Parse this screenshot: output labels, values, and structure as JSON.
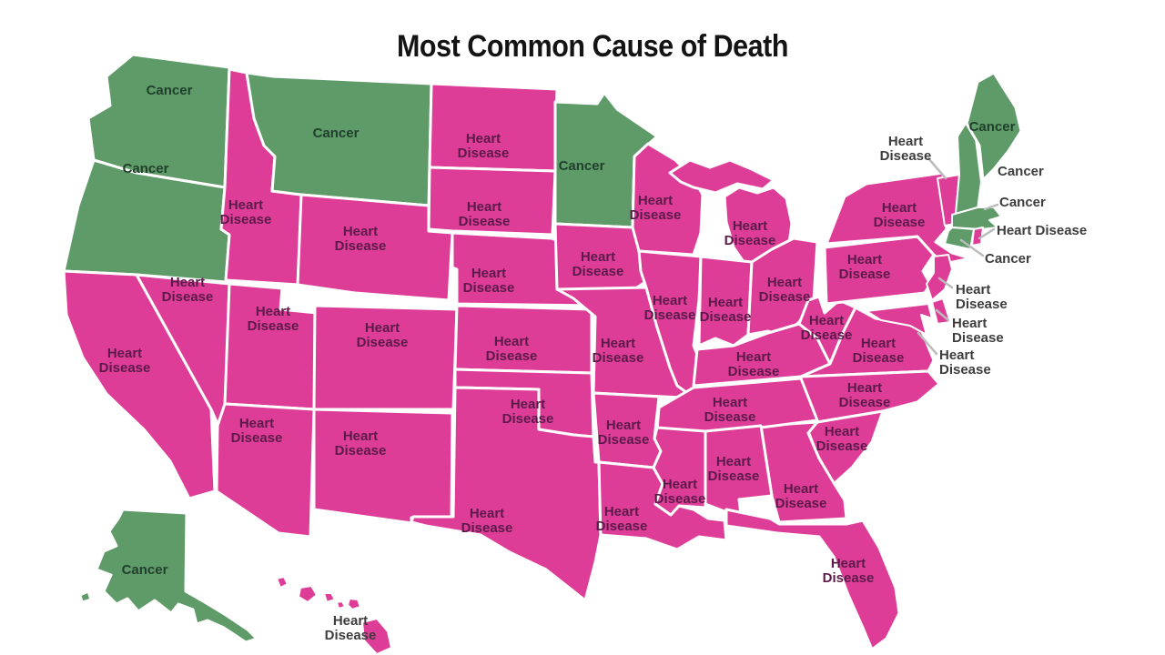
{
  "title": "Most Common Cause of Death",
  "map": {
    "causes": {
      "heart_disease": {
        "label": "Heart Disease",
        "fill": "#de3d97",
        "label_color": "#5c1a4a"
      },
      "cancer": {
        "label": "Cancer",
        "fill": "#5f9b69",
        "label_color": "#20402c"
      }
    },
    "colors": {
      "offmap_label": "#3d3d3d",
      "leader_line": "#bbbbbb",
      "state_border": "#ffffff",
      "background": "#ffffff",
      "title": "#141414"
    },
    "states": [
      {
        "id": "WA",
        "name": "Washington",
        "cause": "cancer"
      },
      {
        "id": "OR",
        "name": "Oregon",
        "cause": "cancer"
      },
      {
        "id": "CA",
        "name": "California",
        "cause": "heart_disease"
      },
      {
        "id": "NV",
        "name": "Nevada",
        "cause": "heart_disease"
      },
      {
        "id": "ID",
        "name": "Idaho",
        "cause": "heart_disease"
      },
      {
        "id": "MT",
        "name": "Montana",
        "cause": "cancer"
      },
      {
        "id": "WY",
        "name": "Wyoming",
        "cause": "heart_disease"
      },
      {
        "id": "UT",
        "name": "Utah",
        "cause": "heart_disease"
      },
      {
        "id": "CO",
        "name": "Colorado",
        "cause": "heart_disease"
      },
      {
        "id": "AZ",
        "name": "Arizona",
        "cause": "heart_disease"
      },
      {
        "id": "NM",
        "name": "New Mexico",
        "cause": "heart_disease"
      },
      {
        "id": "ND",
        "name": "North Dakota",
        "cause": "heart_disease"
      },
      {
        "id": "SD",
        "name": "South Dakota",
        "cause": "heart_disease"
      },
      {
        "id": "NE",
        "name": "Nebraska",
        "cause": "heart_disease"
      },
      {
        "id": "KS",
        "name": "Kansas",
        "cause": "heart_disease"
      },
      {
        "id": "OK",
        "name": "Oklahoma",
        "cause": "heart_disease"
      },
      {
        "id": "TX",
        "name": "Texas",
        "cause": "heart_disease"
      },
      {
        "id": "MN",
        "name": "Minnesota",
        "cause": "cancer"
      },
      {
        "id": "IA",
        "name": "Iowa",
        "cause": "heart_disease"
      },
      {
        "id": "MO",
        "name": "Missouri",
        "cause": "heart_disease"
      },
      {
        "id": "AR",
        "name": "Arkansas",
        "cause": "heart_disease"
      },
      {
        "id": "LA",
        "name": "Louisiana",
        "cause": "heart_disease"
      },
      {
        "id": "WI",
        "name": "Wisconsin",
        "cause": "heart_disease"
      },
      {
        "id": "IL",
        "name": "Illinois",
        "cause": "heart_disease"
      },
      {
        "id": "MI",
        "name": "Michigan",
        "cause": "heart_disease"
      },
      {
        "id": "IN",
        "name": "Indiana",
        "cause": "heart_disease"
      },
      {
        "id": "OH",
        "name": "Ohio",
        "cause": "heart_disease"
      },
      {
        "id": "KY",
        "name": "Kentucky",
        "cause": "heart_disease"
      },
      {
        "id": "TN",
        "name": "Tennessee",
        "cause": "heart_disease"
      },
      {
        "id": "MS",
        "name": "Mississippi",
        "cause": "heart_disease"
      },
      {
        "id": "AL",
        "name": "Alabama",
        "cause": "heart_disease"
      },
      {
        "id": "GA",
        "name": "Georgia",
        "cause": "heart_disease"
      },
      {
        "id": "FL",
        "name": "Florida",
        "cause": "heart_disease"
      },
      {
        "id": "SC",
        "name": "South Carolina",
        "cause": "heart_disease"
      },
      {
        "id": "NC",
        "name": "North Carolina",
        "cause": "heart_disease"
      },
      {
        "id": "VA",
        "name": "Virginia",
        "cause": "heart_disease"
      },
      {
        "id": "WV",
        "name": "West Virginia",
        "cause": "heart_disease"
      },
      {
        "id": "PA",
        "name": "Pennsylvania",
        "cause": "heart_disease"
      },
      {
        "id": "NY",
        "name": "New York",
        "cause": "heart_disease"
      },
      {
        "id": "VT",
        "name": "Vermont",
        "cause": "heart_disease"
      },
      {
        "id": "NH",
        "name": "New Hampshire",
        "cause": "cancer"
      },
      {
        "id": "ME",
        "name": "Maine",
        "cause": "cancer"
      },
      {
        "id": "MA",
        "name": "Massachusetts",
        "cause": "cancer"
      },
      {
        "id": "CT",
        "name": "Connecticut",
        "cause": "cancer"
      },
      {
        "id": "RI",
        "name": "Rhode Island",
        "cause": "heart_disease"
      },
      {
        "id": "NJ",
        "name": "New Jersey",
        "cause": "heart_disease"
      },
      {
        "id": "DE",
        "name": "Delaware",
        "cause": "heart_disease"
      },
      {
        "id": "MD",
        "name": "Maryland",
        "cause": "heart_disease"
      },
      {
        "id": "AK",
        "name": "Alaska",
        "cause": "cancer"
      },
      {
        "id": "HI",
        "name": "Hawaii",
        "cause": "heart_disease"
      }
    ]
  }
}
